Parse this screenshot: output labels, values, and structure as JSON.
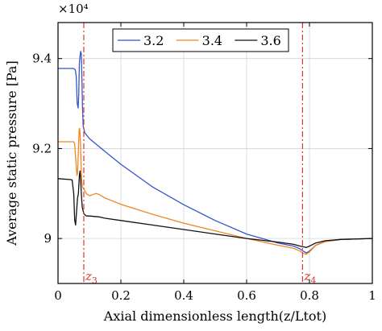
{
  "chart_data": {
    "type": "line",
    "xlabel": "Axial dimensionless length(z/Ltot)",
    "ylabel": "Average static pressure [Pa]",
    "y_multiplier_label": "×10⁴",
    "xlim": [
      0,
      1
    ],
    "ylim": [
      8.9,
      9.48
    ],
    "x_ticks": [
      0,
      0.2,
      0.4,
      0.6,
      0.8,
      1
    ],
    "x_tick_labels": [
      "0",
      "0.2",
      "0.4",
      "0.6",
      "0.8",
      "1"
    ],
    "y_ticks": [
      9.0,
      9.2,
      9.4
    ],
    "y_tick_labels": [
      "9",
      "9.2",
      "9.4"
    ],
    "grid": true,
    "legend_position": "top-right",
    "series": [
      {
        "name": "3.2",
        "color": "#3355cc",
        "points": [
          [
            0,
            9.378
          ],
          [
            0.05,
            9.378
          ],
          [
            0.055,
            9.375
          ],
          [
            0.058,
            9.36
          ],
          [
            0.061,
            9.3
          ],
          [
            0.064,
            9.29
          ],
          [
            0.066,
            9.32
          ],
          [
            0.068,
            9.39
          ],
          [
            0.07,
            9.405
          ],
          [
            0.072,
            9.416
          ],
          [
            0.074,
            9.41
          ],
          [
            0.076,
            9.36
          ],
          [
            0.078,
            9.29
          ],
          [
            0.08,
            9.25
          ],
          [
            0.085,
            9.235
          ],
          [
            0.1,
            9.222
          ],
          [
            0.15,
            9.193
          ],
          [
            0.2,
            9.165
          ],
          [
            0.3,
            9.115
          ],
          [
            0.4,
            9.075
          ],
          [
            0.5,
            9.04
          ],
          [
            0.6,
            9.01
          ],
          [
            0.7,
            8.99
          ],
          [
            0.75,
            8.983
          ],
          [
            0.77,
            8.977
          ],
          [
            0.78,
            8.972
          ],
          [
            0.79,
            8.968
          ],
          [
            0.8,
            8.972
          ],
          [
            0.82,
            8.985
          ],
          [
            0.85,
            8.993
          ],
          [
            0.9,
            8.998
          ],
          [
            1,
            9.0
          ]
        ]
      },
      {
        "name": "3.4",
        "color": "#ee8822",
        "points": [
          [
            0,
            9.215
          ],
          [
            0.05,
            9.215
          ],
          [
            0.053,
            9.21
          ],
          [
            0.057,
            9.17
          ],
          [
            0.06,
            9.14
          ],
          [
            0.062,
            9.145
          ],
          [
            0.064,
            9.18
          ],
          [
            0.067,
            9.24
          ],
          [
            0.069,
            9.245
          ],
          [
            0.071,
            9.22
          ],
          [
            0.073,
            9.17
          ],
          [
            0.075,
            9.13
          ],
          [
            0.078,
            9.115
          ],
          [
            0.082,
            9.11
          ],
          [
            0.09,
            9.1
          ],
          [
            0.1,
            9.095
          ],
          [
            0.12,
            9.1
          ],
          [
            0.13,
            9.098
          ],
          [
            0.15,
            9.09
          ],
          [
            0.2,
            9.076
          ],
          [
            0.3,
            9.054
          ],
          [
            0.4,
            9.034
          ],
          [
            0.5,
            9.017
          ],
          [
            0.6,
            9.0
          ],
          [
            0.7,
            8.985
          ],
          [
            0.75,
            8.978
          ],
          [
            0.77,
            8.972
          ],
          [
            0.78,
            8.967
          ],
          [
            0.79,
            8.965
          ],
          [
            0.8,
            8.97
          ],
          [
            0.82,
            8.985
          ],
          [
            0.85,
            8.993
          ],
          [
            0.9,
            8.998
          ],
          [
            1,
            9.0
          ]
        ]
      },
      {
        "name": "3.6",
        "color": "#111111",
        "points": [
          [
            0,
            9.133
          ],
          [
            0.04,
            9.131
          ],
          [
            0.045,
            9.13
          ],
          [
            0.05,
            9.1
          ],
          [
            0.053,
            9.04
          ],
          [
            0.056,
            9.03
          ],
          [
            0.059,
            9.06
          ],
          [
            0.062,
            9.09
          ],
          [
            0.065,
            9.1
          ],
          [
            0.068,
            9.14
          ],
          [
            0.07,
            9.15
          ],
          [
            0.072,
            9.13
          ],
          [
            0.074,
            9.1
          ],
          [
            0.077,
            9.07
          ],
          [
            0.082,
            9.055
          ],
          [
            0.09,
            9.05
          ],
          [
            0.1,
            9.05
          ],
          [
            0.13,
            9.048
          ],
          [
            0.15,
            9.045
          ],
          [
            0.2,
            9.04
          ],
          [
            0.3,
            9.03
          ],
          [
            0.4,
            9.02
          ],
          [
            0.5,
            9.01
          ],
          [
            0.6,
            9.0
          ],
          [
            0.7,
            8.992
          ],
          [
            0.75,
            8.987
          ],
          [
            0.77,
            8.983
          ],
          [
            0.79,
            8.98
          ],
          [
            0.8,
            8.983
          ],
          [
            0.82,
            8.99
          ],
          [
            0.85,
            8.995
          ],
          [
            0.9,
            8.998
          ],
          [
            1,
            9.0
          ]
        ]
      }
    ],
    "annotations": [
      {
        "label_base": "z",
        "label_sub": "3",
        "x": 0.082,
        "color": "#dd3333"
      },
      {
        "label_base": "z",
        "label_sub": "4",
        "x": 0.778,
        "color": "#dd3333"
      }
    ]
  }
}
